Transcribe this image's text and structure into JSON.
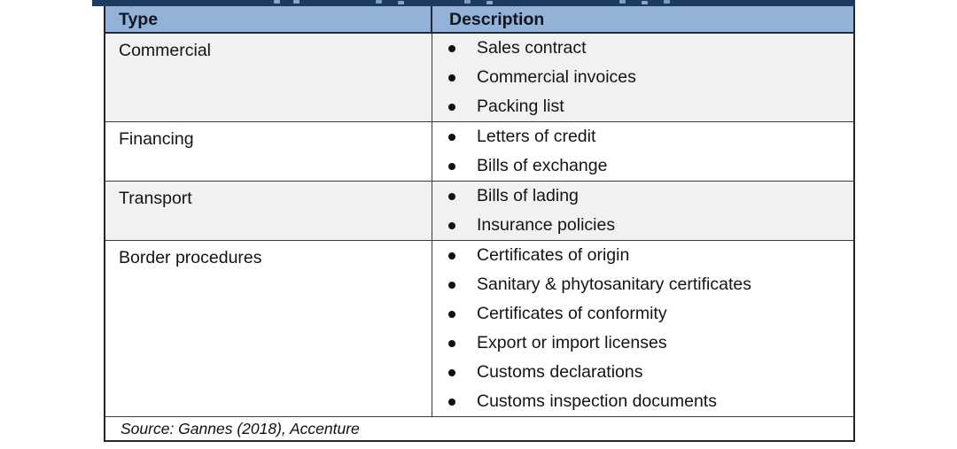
{
  "table": {
    "headers": {
      "type": "Type",
      "description": "Description"
    },
    "rows": [
      {
        "type": "Commercial",
        "items": [
          "Sales contract",
          "Commercial invoices",
          "Packing list"
        ]
      },
      {
        "type": "Financing",
        "items": [
          "Letters of credit",
          "Bills of exchange"
        ]
      },
      {
        "type": "Transport",
        "items": [
          "Bills of lading",
          "Insurance policies"
        ]
      },
      {
        "type": "Border procedures",
        "items": [
          "Certificates of origin",
          "Sanitary &amp; phytosanitary certificates",
          "Certificates of conformity",
          "Export or import licenses",
          "Customs declarations",
          "Customs inspection documents"
        ]
      }
    ],
    "source": "Source: Gannes (2018), Accenture"
  },
  "colors": {
    "title_strip_bg": "#1e3a5e",
    "header_bg": "#92b2d8",
    "row_alt_bg": "#f1f1f2",
    "row_bg": "#ffffff",
    "border": "#3a3a3a",
    "outer_border": "#262626",
    "text": "#141414"
  }
}
